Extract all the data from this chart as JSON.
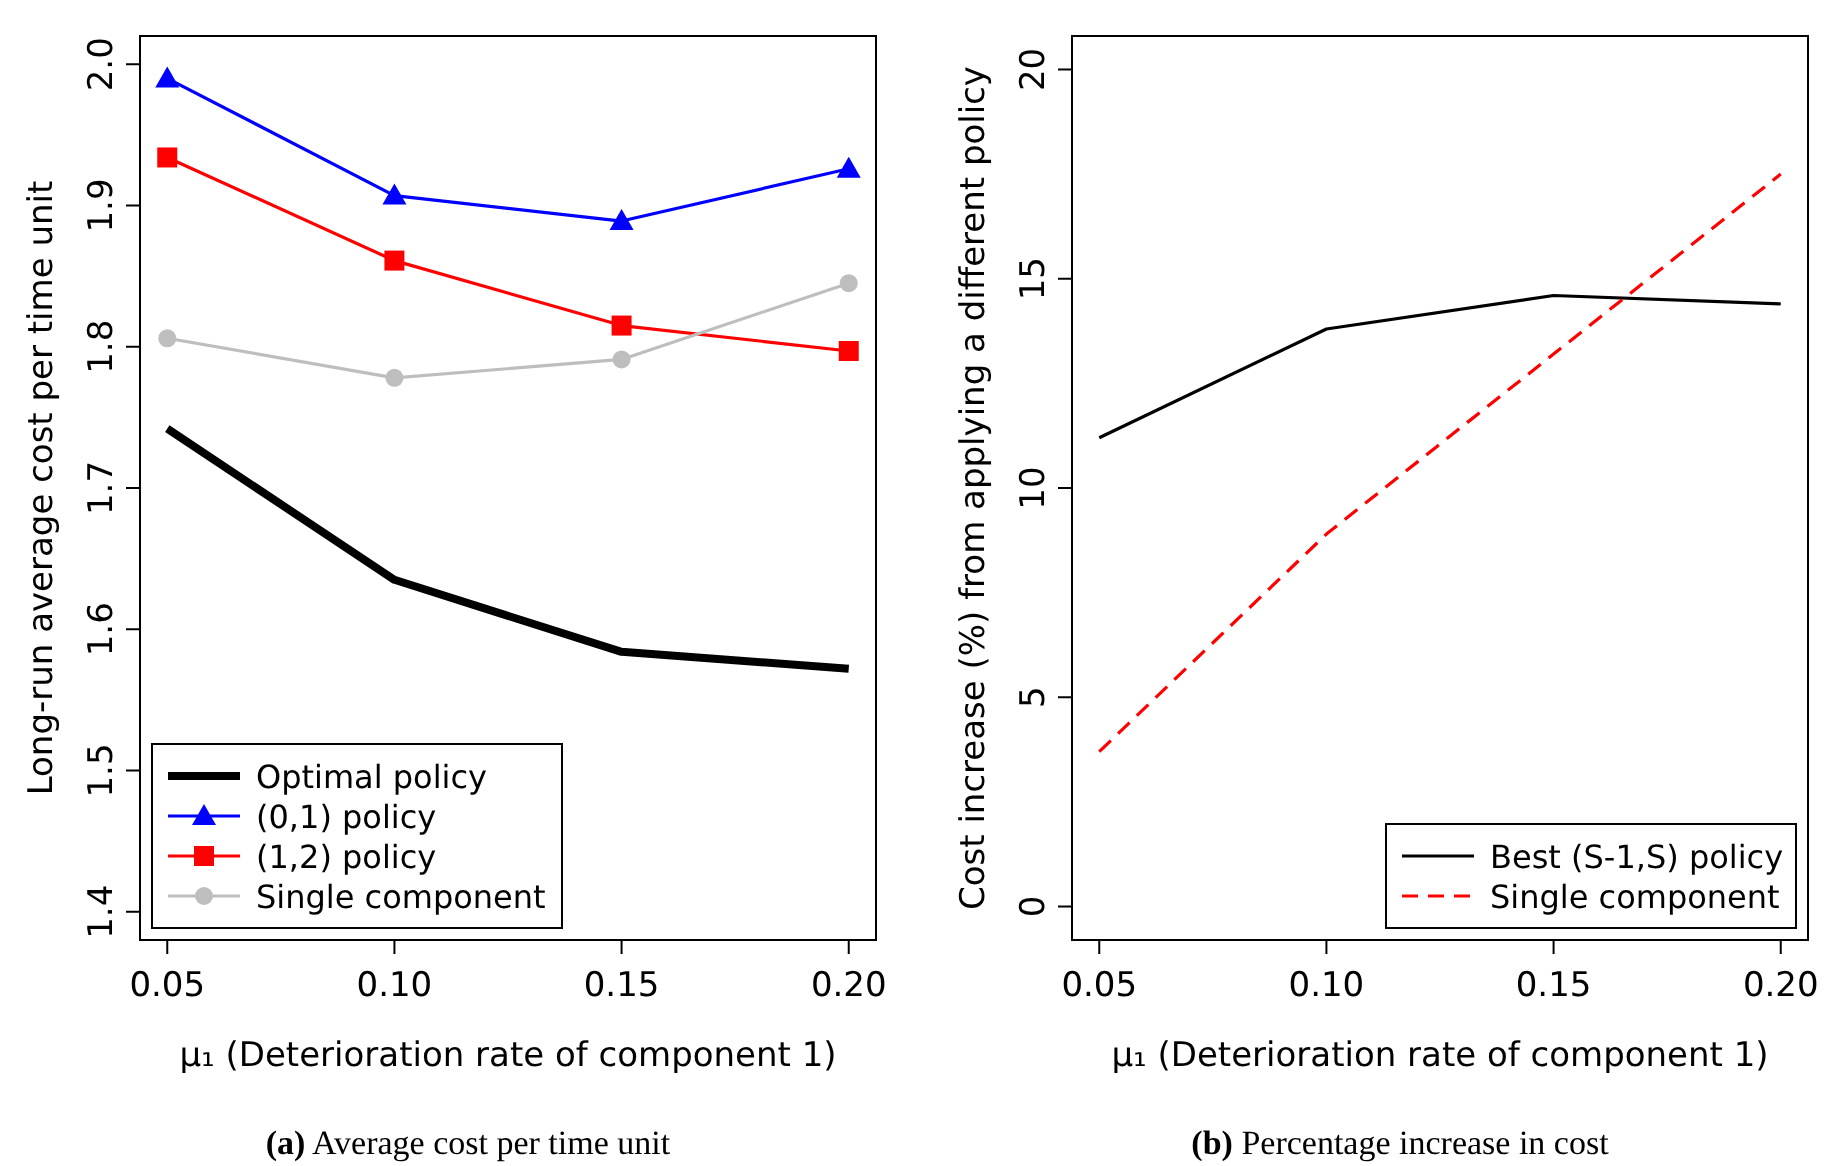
{
  "chart_data": [
    {
      "type": "line",
      "xlabel": "μ₁ (Deterioration rate of component 1)",
      "ylabel": "Long-run average cost per time unit",
      "x": [
        0.05,
        0.1,
        0.15,
        0.2
      ],
      "xlim": [
        0.044,
        0.206
      ],
      "xticks": [
        {
          "value": 0.05,
          "label": "0.05"
        },
        {
          "value": 0.1,
          "label": "0.10"
        },
        {
          "value": 0.15,
          "label": "0.15"
        },
        {
          "value": 0.2,
          "label": "0.20"
        }
      ],
      "ylim": [
        1.38,
        2.02
      ],
      "yticks": [
        1.4,
        1.5,
        1.6,
        1.7,
        1.8,
        1.9,
        {
          "value": 2,
          "label": "2.0"
        }
      ],
      "grid": false,
      "legend": "bottom left",
      "annotations": [
        "(a) Average cost per time unit"
      ],
      "series": [
        {
          "name": "Optimal policy",
          "color": "#000000",
          "marker": "none",
          "values": [
            1.742,
            1.635,
            1.584,
            1.572
          ]
        },
        {
          "name": "(0,1) policy",
          "color": "#0000ff",
          "marker": "triangle",
          "values": [
            1.99,
            1.907,
            1.889,
            1.926
          ]
        },
        {
          "name": "(1,2) policy",
          "color": "#ff0000",
          "marker": "square",
          "values": [
            1.934,
            1.861,
            1.815,
            1.797
          ]
        },
        {
          "name": "Single component",
          "color": "#bebebe",
          "marker": "circle",
          "values": [
            1.806,
            1.778,
            1.791,
            1.845
          ]
        }
      ]
    },
    {
      "type": "line",
      "xlabel": "μ₁ (Deterioration rate of component 1)",
      "ylabel": "Cost increase (%) from applying a different policy",
      "x": [
        0.05,
        0.1,
        0.15,
        0.2
      ],
      "xlim": [
        0.044,
        0.206
      ],
      "xticks": [
        {
          "value": 0.05,
          "label": "0.05"
        },
        {
          "value": 0.1,
          "label": "0.10"
        },
        {
          "value": 0.15,
          "label": "0.15"
        },
        {
          "value": 0.2,
          "label": "0.20"
        }
      ],
      "ylim": [
        -0.8,
        20.8
      ],
      "yticks": [
        0,
        5,
        10,
        15,
        20
      ],
      "grid": false,
      "legend": "bottom right",
      "annotations": [
        "(b) Percentage increase in cost"
      ],
      "series": [
        {
          "name": "Best (S-1,S) policy",
          "color": "#000000",
          "line_style": "solid",
          "values": [
            11.2,
            13.8,
            14.6,
            14.4
          ]
        },
        {
          "name": "Single component",
          "color": "#ff0000",
          "line_style": "dashed",
          "values": [
            3.7,
            8.9,
            13.2,
            17.5
          ]
        }
      ]
    }
  ]
}
